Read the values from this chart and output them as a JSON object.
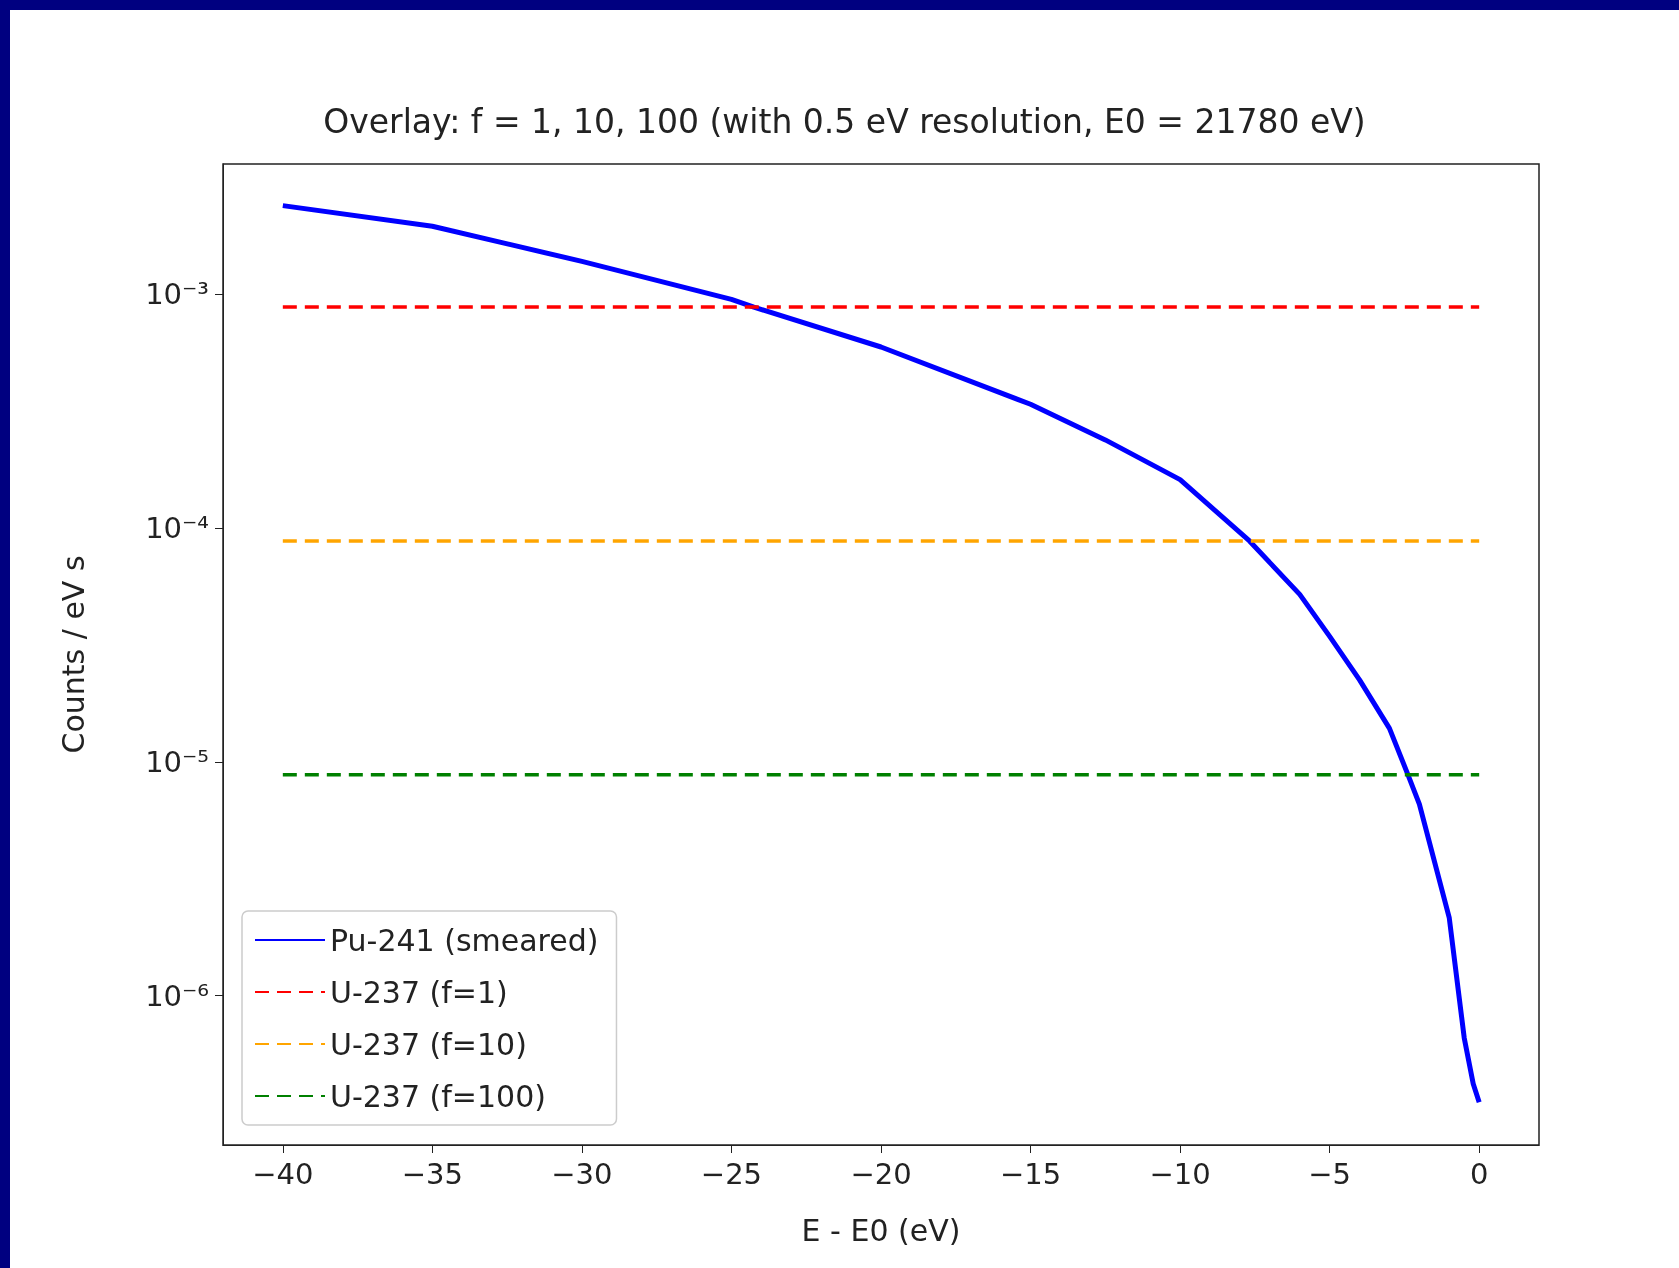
{
  "chart_data": {
    "type": "line",
    "title": "Overlay: f = 1, 10, 100 (with 0.5 eV resolution, E0 = 21780 eV)",
    "xlabel": "E - E0 (eV)",
    "ylabel": "Counts / eV s",
    "log": "y",
    "grid": false,
    "legend": "bottom left",
    "marker": "none",
    "xlim": [
      -42,
      2
    ],
    "xticks": [
      {
        "value": -40,
        "label": "−40"
      },
      {
        "value": -35,
        "label": "−35"
      },
      {
        "value": -30,
        "label": "−30"
      },
      {
        "value": -25,
        "label": "−25"
      },
      {
        "value": -20,
        "label": "−20"
      },
      {
        "value": -15,
        "label": "−15"
      },
      {
        "value": -10,
        "label": "−10"
      },
      {
        "value": -5,
        "label": "−5"
      },
      0
    ],
    "ylim": [
      2.3e-07,
      0.0036
    ],
    "yticks": [
      {
        "value": 1e-06,
        "label": "10⁻⁶"
      },
      {
        "value": 1e-05,
        "label": "10⁻⁵"
      },
      {
        "value": 0.0001,
        "label": "10⁻⁴"
      },
      {
        "value": 0.001,
        "label": "10⁻³"
      }
    ],
    "series": [
      {
        "name": "Pu-241 (smeared)",
        "color": "#0000ff",
        "line_style": "solid",
        "x": [
          -40,
          -35,
          -30,
          -25,
          -24.25,
          -20,
          -15,
          -12.5,
          -10,
          -7.68,
          -6,
          -5,
          -4,
          -3,
          -2.38,
          -2,
          -1,
          -0.5,
          -0.2,
          0
        ],
        "values": [
          0.00239,
          0.00195,
          0.00138,
          0.00095,
          0.00088,
          0.000594,
          0.000338,
          0.000238,
          0.000161,
          8.8e-05,
          5.2e-05,
          3.44e-05,
          2.24e-05,
          1.39e-05,
          8.8e-06,
          6.6e-06,
          2.15e-06,
          6.6e-07,
          4.2e-07,
          3.5e-07
        ]
      },
      {
        "name": "U-237 (f=1)",
        "color": "#ff0000",
        "line_style": "dashed",
        "x": [
          -40,
          0
        ],
        "values": [
          0.00088,
          0.00088
        ]
      },
      {
        "name": "U-237 (f=10)",
        "color": "#ffa500",
        "line_style": "dashed",
        "x": [
          -40,
          0
        ],
        "values": [
          8.8e-05,
          8.8e-05
        ]
      },
      {
        "name": "U-237 (f=100)",
        "color": "#008000",
        "line_style": "dashed",
        "x": [
          -40,
          0
        ],
        "values": [
          8.8e-06,
          8.8e-06
        ]
      }
    ]
  }
}
